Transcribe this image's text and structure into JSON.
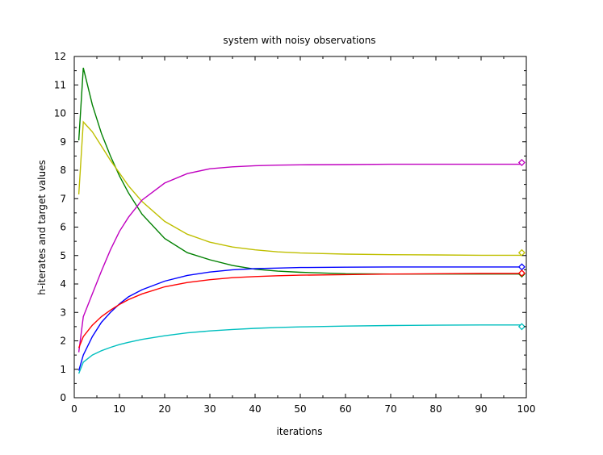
{
  "chart_data": {
    "type": "line",
    "title": "system with noisy observations",
    "xlabel": "iterations",
    "ylabel": "h-iterates and target values",
    "xlim": [
      0,
      100
    ],
    "ylim": [
      0,
      12
    ],
    "xticks": [
      "0",
      "10",
      "20",
      "30",
      "40",
      "50",
      "60",
      "70",
      "80",
      "90",
      "100"
    ],
    "yticks": [
      "0",
      "1",
      "2",
      "3",
      "4",
      "5",
      "6",
      "7",
      "8",
      "9",
      "10",
      "11",
      "12"
    ],
    "grid": false,
    "legend": "none",
    "series": [
      {
        "color": "#008000",
        "x": [
          1,
          2,
          4,
          6,
          8,
          10,
          12,
          15,
          20,
          25,
          30,
          35,
          40,
          45,
          50,
          60,
          70,
          80,
          90,
          99
        ],
        "y": [
          9.05,
          11.6,
          10.3,
          9.3,
          8.5,
          7.8,
          7.2,
          6.45,
          5.6,
          5.1,
          4.85,
          4.65,
          4.52,
          4.45,
          4.41,
          4.36,
          4.35,
          4.35,
          4.35,
          4.35
        ],
        "target": 4.35
      },
      {
        "color": "#bfbf00",
        "x": [
          1,
          2,
          4,
          6,
          8,
          10,
          12,
          15,
          20,
          25,
          30,
          35,
          40,
          45,
          50,
          60,
          70,
          80,
          90,
          99
        ],
        "y": [
          7.15,
          9.7,
          9.35,
          8.85,
          8.35,
          7.9,
          7.45,
          6.9,
          6.2,
          5.75,
          5.47,
          5.3,
          5.2,
          5.13,
          5.09,
          5.05,
          5.03,
          5.02,
          5.01,
          5.01
        ],
        "target": 5.1
      },
      {
        "color": "#c000c0",
        "x": [
          1,
          2,
          4,
          6,
          8,
          10,
          12,
          15,
          20,
          25,
          30,
          35,
          40,
          45,
          50,
          60,
          70,
          80,
          90,
          99
        ],
        "y": [
          1.6,
          2.85,
          3.65,
          4.45,
          5.2,
          5.85,
          6.35,
          6.95,
          7.55,
          7.88,
          8.05,
          8.12,
          8.16,
          8.18,
          8.19,
          8.2,
          8.21,
          8.21,
          8.21,
          8.21
        ],
        "target": 8.27
      },
      {
        "color": "#0000ff",
        "x": [
          1,
          2,
          4,
          6,
          8,
          10,
          12,
          15,
          20,
          25,
          30,
          35,
          40,
          45,
          50,
          60,
          70,
          80,
          90,
          99
        ],
        "y": [
          0.95,
          1.5,
          2.15,
          2.65,
          3.0,
          3.3,
          3.55,
          3.8,
          4.1,
          4.3,
          4.42,
          4.5,
          4.54,
          4.56,
          4.58,
          4.59,
          4.6,
          4.6,
          4.6,
          4.6
        ],
        "target": 4.6
      },
      {
        "color": "#ff0000",
        "x": [
          1,
          2,
          4,
          6,
          8,
          10,
          12,
          15,
          20,
          25,
          30,
          35,
          40,
          45,
          50,
          60,
          70,
          80,
          90,
          99
        ],
        "y": [
          1.75,
          2.15,
          2.55,
          2.85,
          3.08,
          3.28,
          3.45,
          3.65,
          3.9,
          4.05,
          4.15,
          4.22,
          4.26,
          4.29,
          4.31,
          4.33,
          4.35,
          4.36,
          4.37,
          4.37
        ],
        "target": 4.38
      },
      {
        "color": "#00bfbf",
        "x": [
          1,
          2,
          4,
          6,
          8,
          10,
          12,
          15,
          20,
          25,
          30,
          35,
          40,
          45,
          50,
          60,
          70,
          80,
          90,
          99
        ],
        "y": [
          0.85,
          1.25,
          1.5,
          1.65,
          1.77,
          1.87,
          1.95,
          2.05,
          2.18,
          2.28,
          2.35,
          2.4,
          2.44,
          2.47,
          2.49,
          2.52,
          2.54,
          2.55,
          2.56,
          2.56
        ],
        "target": 2.5
      }
    ]
  }
}
